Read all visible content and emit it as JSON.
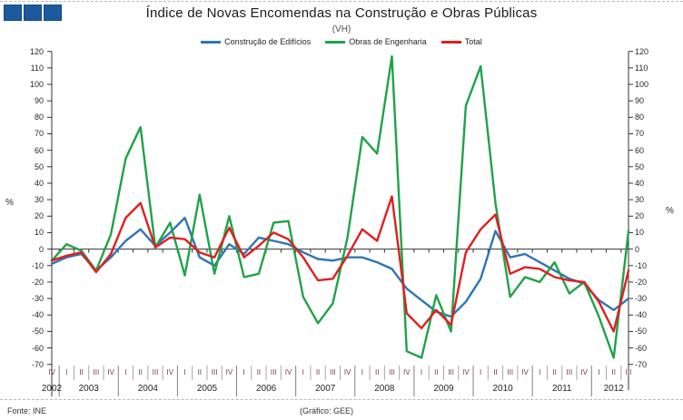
{
  "header": {
    "title": "Índice de Novas Encomendas na Construção e Obras Públicas",
    "subtitle": "(VH)"
  },
  "logo": {
    "square_count": 3,
    "color": "#1c5a9e"
  },
  "legend": [
    {
      "label": "Construção de Edifícios",
      "color": "#2e75b6"
    },
    {
      "label": "Obras de Engenharia",
      "color": "#1fa348"
    },
    {
      "label": "Total",
      "color": "#e01f1f"
    }
  ],
  "footer": {
    "source": "Fonte:  INE",
    "credit": "(Gráfico:  GEE)"
  },
  "chart_data": {
    "type": "line",
    "title": "Índice de Novas Encomendas na Construção e Obras Públicas",
    "subtitle": "(VH)",
    "ylabel_left": "%",
    "ylabel_right": "%",
    "ylim": [
      -70,
      120
    ],
    "ytick_step": 10,
    "grid": "none",
    "legend_position": "top-center",
    "years": [
      {
        "year": "2002",
        "quarters": [
          "IV"
        ]
      },
      {
        "year": "2003",
        "quarters": [
          "I",
          "II",
          "III",
          "IV"
        ]
      },
      {
        "year": "2004",
        "quarters": [
          "I",
          "II",
          "III",
          "IV"
        ]
      },
      {
        "year": "2005",
        "quarters": [
          "I",
          "II",
          "III",
          "IV"
        ]
      },
      {
        "year": "2006",
        "quarters": [
          "I",
          "II",
          "III",
          "IV"
        ]
      },
      {
        "year": "2007",
        "quarters": [
          "I",
          "II",
          "III",
          "IV"
        ]
      },
      {
        "year": "2008",
        "quarters": [
          "I",
          "II",
          "III",
          "IV"
        ]
      },
      {
        "year": "2009",
        "quarters": [
          "I",
          "II",
          "III",
          "IV"
        ]
      },
      {
        "year": "2010",
        "quarters": [
          "I",
          "II",
          "III",
          "IV"
        ]
      },
      {
        "year": "2011",
        "quarters": [
          "I",
          "II",
          "III",
          "IV"
        ]
      },
      {
        "year": "2012",
        "quarters": [
          "I",
          "II",
          "III"
        ]
      }
    ],
    "series": [
      {
        "name": "Construção de Edifícios",
        "color": "#2e75b6",
        "values": [
          -9,
          -5,
          -3,
          -13,
          -5,
          5,
          12,
          2,
          10,
          19,
          -5,
          -10,
          3,
          -3,
          7,
          5,
          3,
          -2,
          -6,
          -7,
          -5,
          -5,
          -8,
          -12,
          -24,
          -31,
          -38,
          -41,
          -32,
          -18,
          11,
          -5,
          -3,
          -8,
          -13,
          -18,
          -21,
          -31,
          -37,
          -30
        ]
      },
      {
        "name": "Obras de Engenharia",
        "color": "#1fa348",
        "values": [
          -7,
          3,
          -1,
          -13,
          9,
          55,
          74,
          1,
          16,
          -16,
          33,
          -15,
          20,
          -17,
          -15,
          16,
          17,
          -29,
          -45,
          -33,
          7,
          68,
          58,
          117,
          -62,
          -66,
          -28,
          -50,
          87,
          111,
          28,
          -29,
          -17,
          -20,
          -8,
          -27,
          -20,
          -41,
          -66,
          11
        ]
      },
      {
        "name": "Total",
        "color": "#e01f1f",
        "values": [
          -7,
          -4,
          -2,
          -14,
          -3,
          19,
          28,
          1,
          7,
          6,
          -2,
          -5,
          13,
          -5,
          2,
          10,
          6,
          -5,
          -19,
          -18,
          -4,
          12,
          5,
          32,
          -39,
          -48,
          -37,
          -46,
          -2,
          12,
          21,
          -15,
          -11,
          -12,
          -17,
          -19,
          -20,
          -32,
          -50,
          -13
        ]
      }
    ]
  }
}
